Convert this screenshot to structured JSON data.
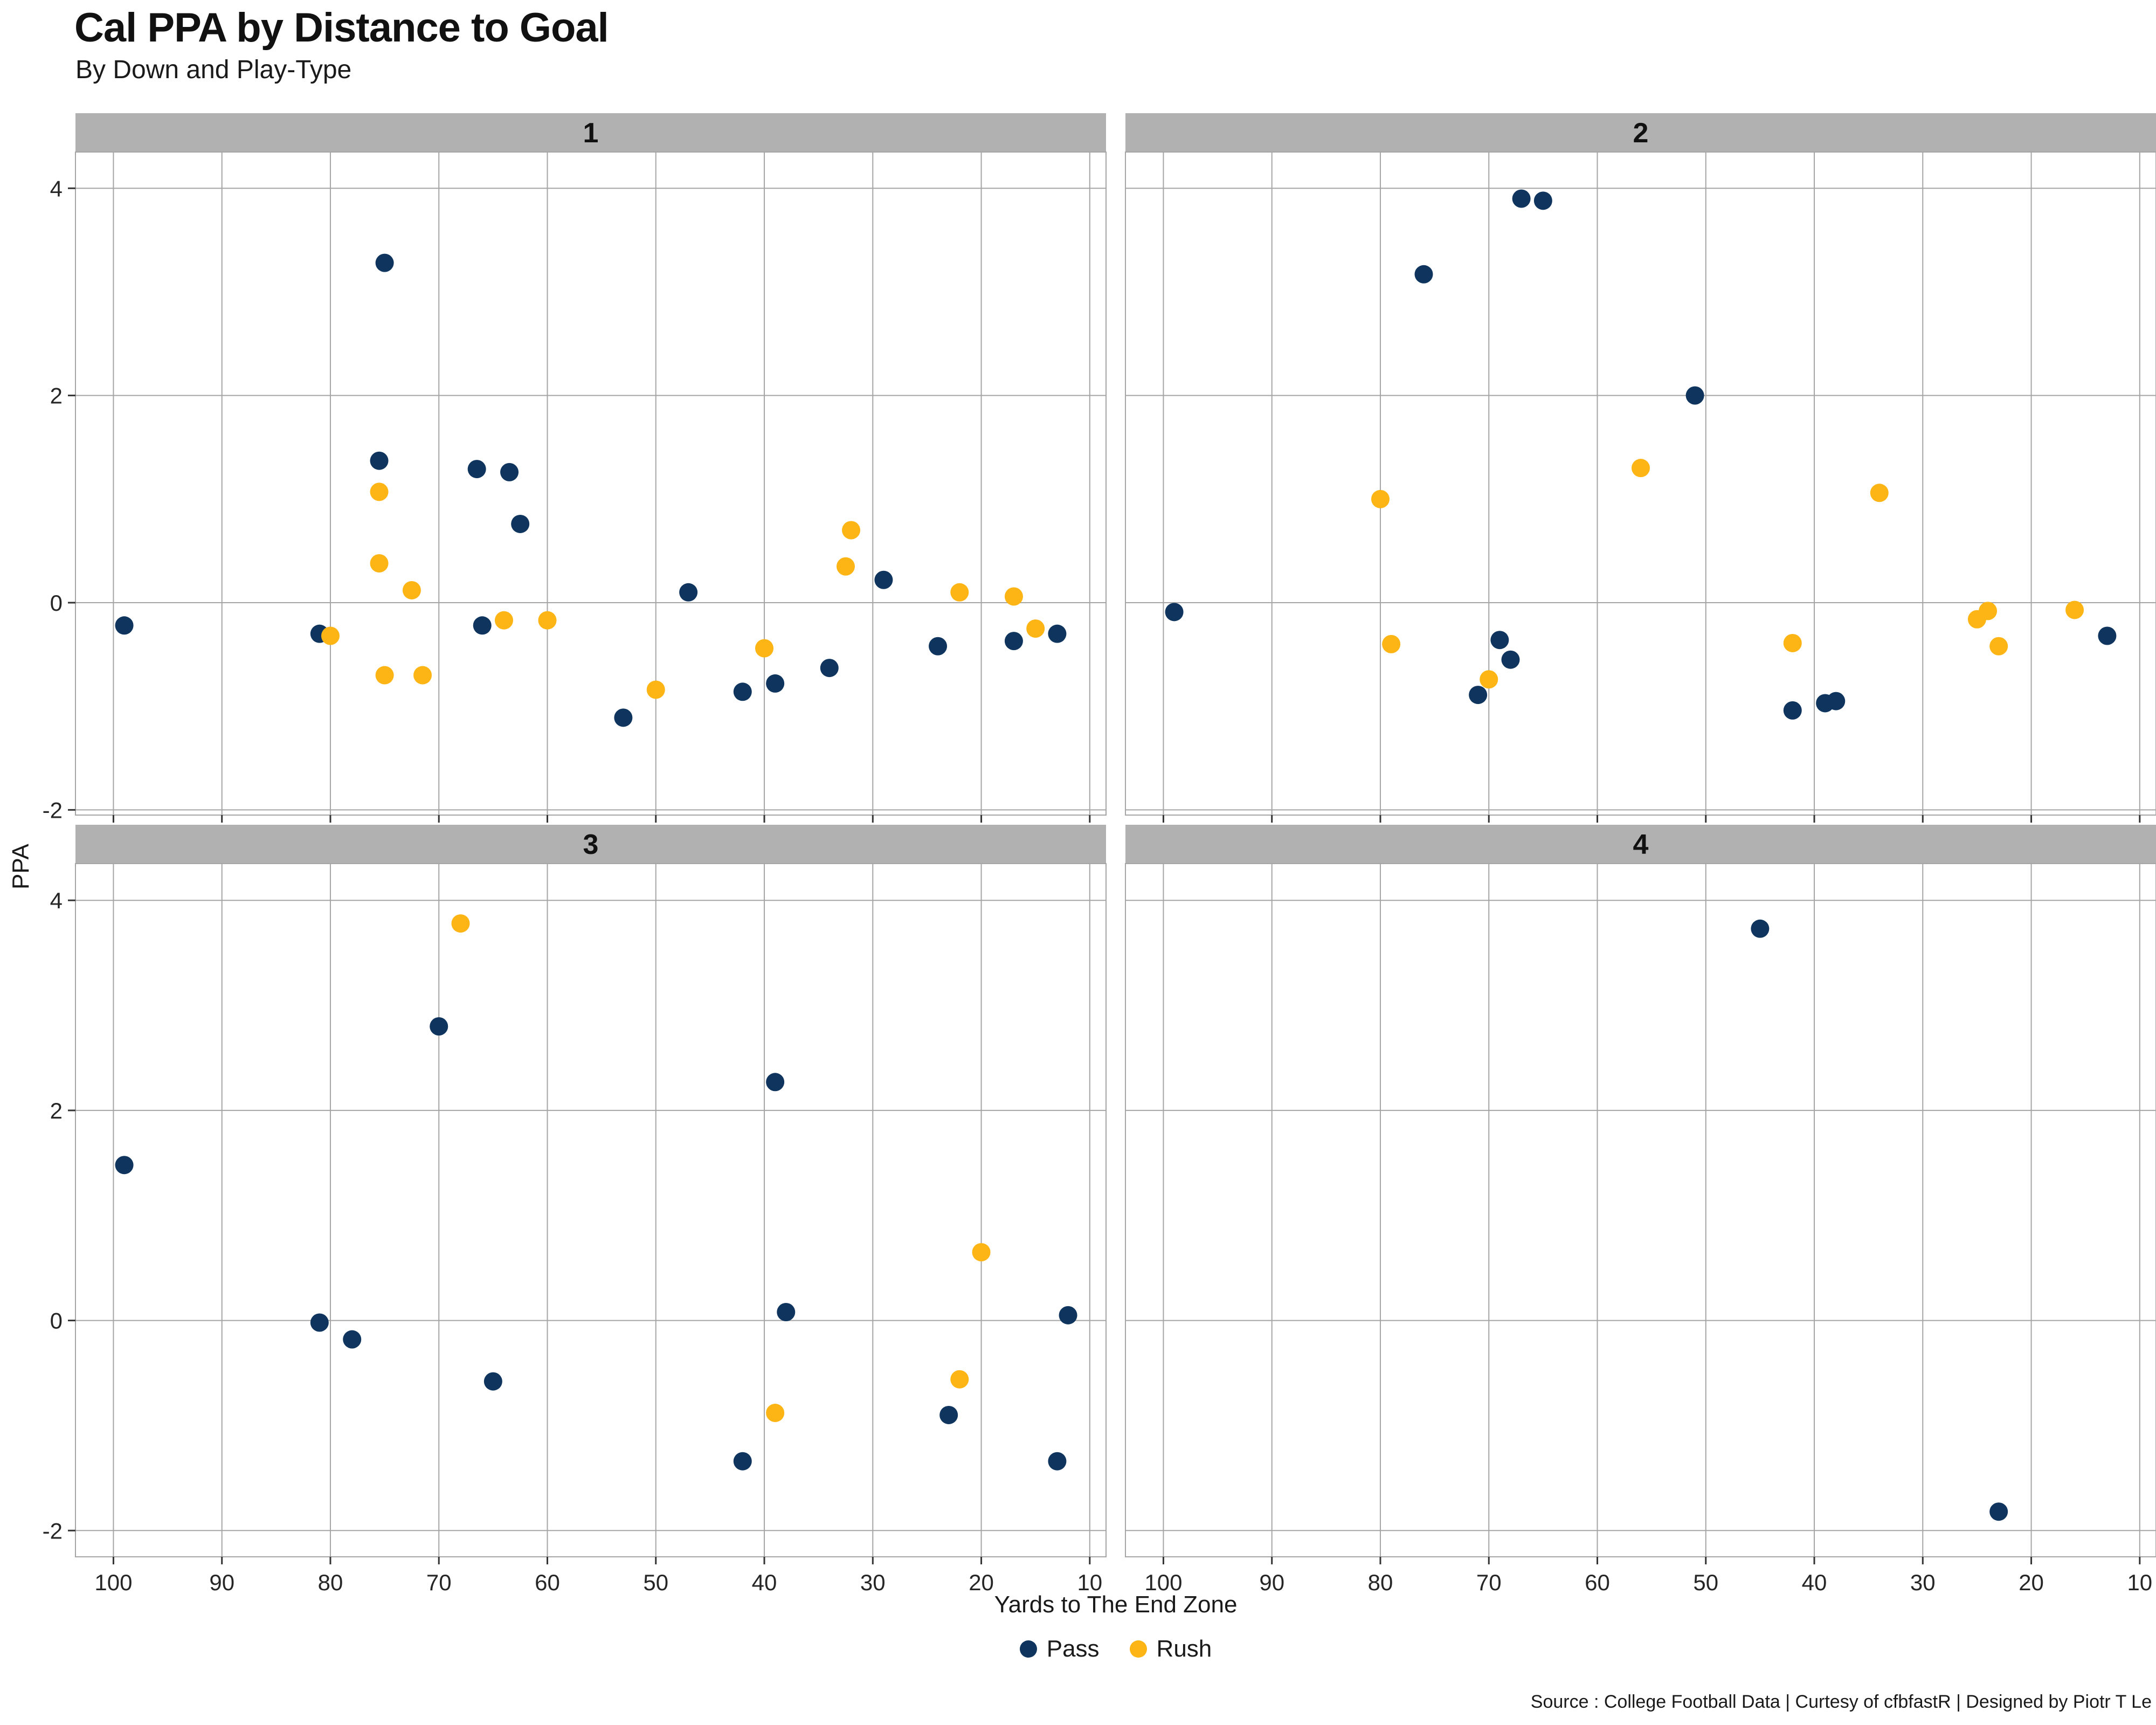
{
  "chart_data": {
    "type": "scatter",
    "title": "Cal PPA by Distance to Goal",
    "subtitle": "By Down and Play-Type",
    "xlabel": "Yards to The End Zone",
    "ylabel": "PPA",
    "source": "Source : College Football Data | Curtesy of cfbfastR | Designed by Piotr T Le",
    "x_axis": {
      "ticks": [
        100,
        90,
        80,
        70,
        60,
        50,
        40,
        30,
        20,
        10
      ],
      "reversed": true,
      "lim": [
        103.5,
        8.5
      ]
    },
    "y_axis": {
      "ticks": [
        -2,
        0,
        2,
        4
      ],
      "lim": [
        -2.25,
        4.35
      ]
    },
    "grid": true,
    "legend": {
      "position": "bottom",
      "entries": [
        {
          "label": "Pass",
          "color": "#0f355f"
        },
        {
          "label": "Rush",
          "color": "#fdb515"
        }
      ]
    },
    "colors": {
      "strip_bg": "#b1b1b1",
      "grid": "#a5a5a5",
      "tick": "#333333",
      "panel_bg": "#ffffff"
    },
    "facets": [
      {
        "label": "1",
        "series": [
          {
            "name": "Pass",
            "points": [
              [
                99,
                -0.22
              ],
              [
                81,
                -0.3
              ],
              [
                75,
                3.28
              ],
              [
                75.5,
                1.37
              ],
              [
                66.5,
                1.29
              ],
              [
                66,
                -0.22
              ],
              [
                63.5,
                1.26
              ],
              [
                62.5,
                0.76
              ],
              [
                53,
                -1.11
              ],
              [
                47,
                0.1
              ],
              [
                42,
                -0.86
              ],
              [
                39,
                -0.78
              ],
              [
                34,
                -0.63
              ],
              [
                29,
                0.22
              ],
              [
                24,
                -0.42
              ],
              [
                17,
                -0.37
              ],
              [
                13,
                -0.3
              ]
            ]
          },
          {
            "name": "Rush",
            "points": [
              [
                80,
                -0.32
              ],
              [
                75.5,
                1.07
              ],
              [
                75.5,
                0.38
              ],
              [
                75,
                -0.7
              ],
              [
                72.5,
                0.12
              ],
              [
                71.5,
                -0.7
              ],
              [
                64,
                -0.17
              ],
              [
                60,
                -0.17
              ],
              [
                50,
                -0.84
              ],
              [
                40,
                -0.44
              ],
              [
                32,
                0.7
              ],
              [
                32.5,
                0.35
              ],
              [
                22,
                0.1
              ],
              [
                17,
                0.06
              ],
              [
                15,
                -0.25
              ]
            ]
          }
        ]
      },
      {
        "label": "2",
        "series": [
          {
            "name": "Pass",
            "points": [
              [
                99,
                -0.09
              ],
              [
                76,
                3.17
              ],
              [
                71,
                -0.89
              ],
              [
                69,
                -0.36
              ],
              [
                68,
                -0.55
              ],
              [
                67,
                3.9
              ],
              [
                65,
                3.88
              ],
              [
                51,
                2.0
              ],
              [
                42,
                -1.04
              ],
              [
                39,
                -0.97
              ],
              [
                38,
                -0.95
              ],
              [
                13,
                -0.32
              ]
            ]
          },
          {
            "name": "Rush",
            "points": [
              [
                80,
                1.0
              ],
              [
                79,
                -0.4
              ],
              [
                70,
                -0.74
              ],
              [
                56,
                1.3
              ],
              [
                42,
                -0.39
              ],
              [
                34,
                1.06
              ],
              [
                25,
                -0.16
              ],
              [
                24,
                -0.08
              ],
              [
                23,
                -0.42
              ],
              [
                16,
                -0.07
              ]
            ]
          }
        ]
      },
      {
        "label": "3",
        "series": [
          {
            "name": "Pass",
            "points": [
              [
                99,
                1.48
              ],
              [
                81,
                -0.02
              ],
              [
                78,
                -0.18
              ],
              [
                70,
                2.8
              ],
              [
                65,
                -0.58
              ],
              [
                42,
                -1.34
              ],
              [
                39,
                2.27
              ],
              [
                38,
                0.08
              ],
              [
                23,
                -0.9
              ],
              [
                13,
                -1.34
              ],
              [
                12,
                0.05
              ]
            ]
          },
          {
            "name": "Rush",
            "points": [
              [
                68,
                3.78
              ],
              [
                39,
                -0.88
              ],
              [
                22,
                -0.56
              ],
              [
                20,
                0.65
              ]
            ]
          }
        ]
      },
      {
        "label": "4",
        "series": [
          {
            "name": "Pass",
            "points": [
              [
                45,
                3.73
              ],
              [
                23,
                -1.82
              ]
            ]
          },
          {
            "name": "Rush",
            "points": []
          }
        ]
      }
    ]
  }
}
